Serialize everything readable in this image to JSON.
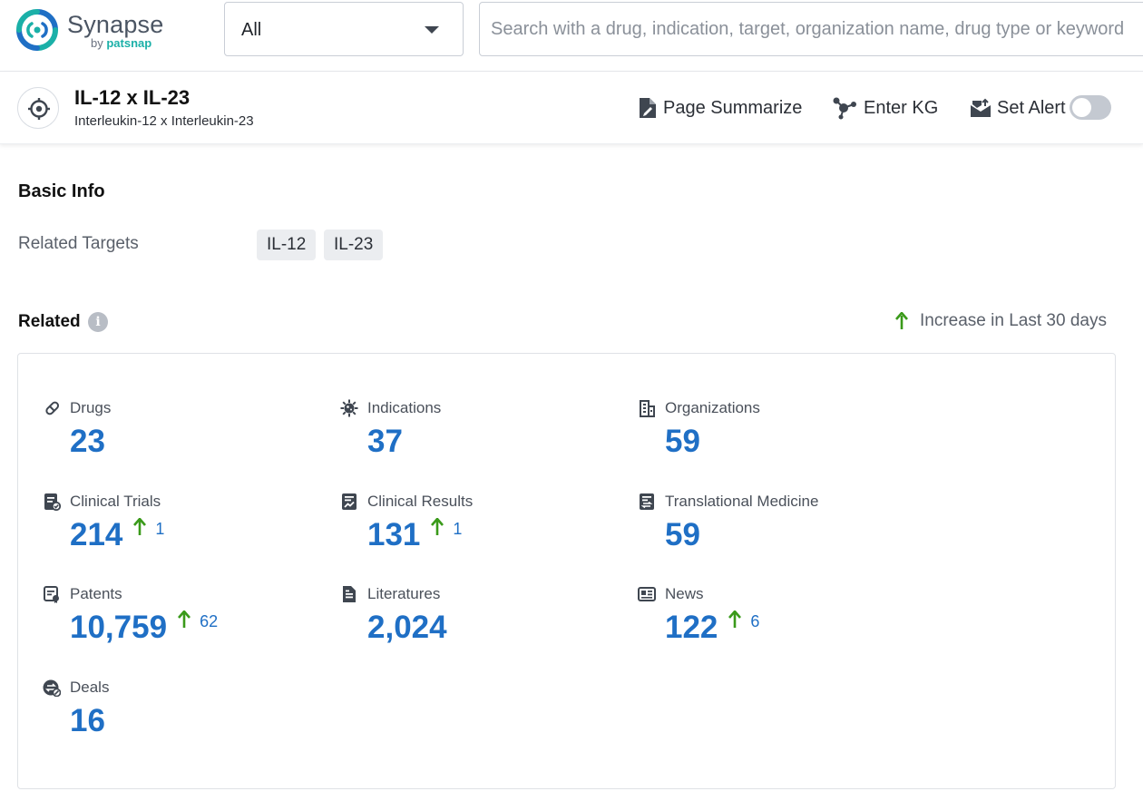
{
  "app": {
    "name": "Synapse",
    "by_prefix": "by",
    "by_brand": "patsnap"
  },
  "search": {
    "scope_value": "All",
    "placeholder": "Search with a drug, indication, target, organization name, drug type or keyword",
    "value": ""
  },
  "target": {
    "title": "IL-12 x IL-23",
    "subtitle": "Interleukin-12 x Interleukin-23",
    "icon": "target-crosshair-icon"
  },
  "actions": {
    "summarize_label": "Page Summarize",
    "kg_label": "Enter KG",
    "alert_label": "Set Alert",
    "alert_enabled": false
  },
  "basic_info": {
    "title": "Basic Info",
    "related_targets_label": "Related Targets",
    "related_targets": [
      "IL-12",
      "IL-23"
    ]
  },
  "related": {
    "title": "Related",
    "legend_label": "Increase in Last 30 days",
    "colors": {
      "value": "#1f6fc5",
      "increase": "#3a9a1a"
    },
    "stats": [
      {
        "label": "Drugs",
        "value": "23",
        "icon": "pill-icon"
      },
      {
        "label": "Indications",
        "value": "37",
        "icon": "virus-icon"
      },
      {
        "label": "Organizations",
        "value": "59",
        "icon": "building-icon"
      },
      {
        "label": "Clinical Trials",
        "value": "214",
        "increase": "1",
        "icon": "clinical-trials-icon"
      },
      {
        "label": "Clinical Results",
        "value": "131",
        "increase": "1",
        "icon": "clinical-results-icon"
      },
      {
        "label": "Translational Medicine",
        "value": "59",
        "icon": "translational-medicine-icon"
      },
      {
        "label": "Patents",
        "value": "10,759",
        "increase": "62",
        "icon": "patent-icon"
      },
      {
        "label": "Literatures",
        "value": "2,024",
        "icon": "document-icon"
      },
      {
        "label": "News",
        "value": "122",
        "increase": "6",
        "icon": "news-icon"
      },
      {
        "label": "Deals",
        "value": "16",
        "icon": "deals-icon"
      }
    ]
  }
}
